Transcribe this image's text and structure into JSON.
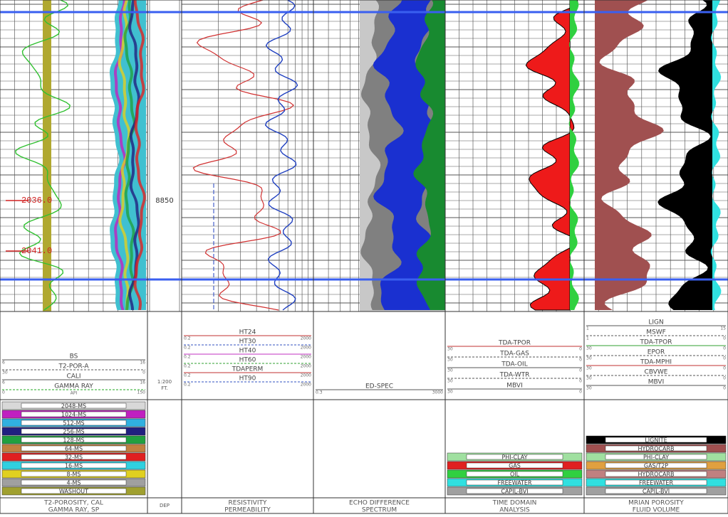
{
  "depth": {
    "scale": "1:200",
    "unit": "FT.",
    "label": "8850",
    "footer": "DEP",
    "marks": [
      "2036.0",
      "2041.0"
    ]
  },
  "tracks": [
    {
      "curves": [
        {
          "name": "BS",
          "left": "6",
          "right": "16",
          "color": "#555555"
        },
        {
          "name": "T2-POR-A",
          "left": "30",
          "right": "0",
          "color": "#555555"
        },
        {
          "name": "CALI",
          "left": "6",
          "right": "16",
          "color": "#555555"
        },
        {
          "name": "GAMMA RAY",
          "unit": "API",
          "left": "0",
          "right": "150",
          "color": "#22aa22"
        }
      ],
      "legend": [
        {
          "label": "2048-MS",
          "color": "#d8d8d8"
        },
        {
          "label": "1024-MS",
          "color": "#c020c0"
        },
        {
          "label": "512-MS",
          "color": "#30b0e0"
        },
        {
          "label": "256-MS",
          "color": "#202080"
        },
        {
          "label": "128-MS",
          "color": "#20a040"
        },
        {
          "label": "64-MS",
          "color": "#c08040"
        },
        {
          "label": "32-MS",
          "color": "#e02020"
        },
        {
          "label": "16-MS",
          "color": "#30d0e0"
        },
        {
          "label": "8-MS",
          "color": "#e0d020"
        },
        {
          "label": "4-MS",
          "color": "#a0a0a0"
        },
        {
          "label": "WASHOUT",
          "color": "#a0a030"
        }
      ],
      "footer": [
        "T2-POROSITY, CAL",
        "GAMMA RAY, SP"
      ]
    },
    {
      "curves": [
        {
          "name": "HT24",
          "left": "0.2",
          "right": "2000",
          "color": "#c03030"
        },
        {
          "name": "HT30",
          "left": "0.2",
          "right": "2000",
          "color": "#3050c0"
        },
        {
          "name": "HT40",
          "left": "0.2",
          "right": "2000",
          "color": "#c030c0"
        },
        {
          "name": "HT60",
          "left": "0.2",
          "right": "2000",
          "color": "#30a030"
        },
        {
          "name": "TDAPERM",
          "left": "0.2",
          "right": "2000",
          "color": "#c03030"
        },
        {
          "name": "HT90",
          "left": "0.2",
          "right": "2000",
          "color": "#3050c0"
        }
      ],
      "legend": [],
      "footer": [
        "RESISTIVITY",
        "PERMEABILITY"
      ]
    },
    {
      "curves": [
        {
          "name": "ED-SPEC",
          "left": "0.3",
          "right": "3000",
          "color": "#555555"
        }
      ],
      "legend": [],
      "footer": [
        "ECHO DIFFERENCE",
        "SPECTRUM"
      ]
    },
    {
      "curves": [
        {
          "name": "TDA-TPOR",
          "left": "30",
          "right": "0",
          "color": "#c03030"
        },
        {
          "name": "TDA-GAS",
          "left": "30",
          "right": "0",
          "color": "#555555"
        },
        {
          "name": "TDA-OIL",
          "left": "30",
          "right": "0",
          "color": "#555555"
        },
        {
          "name": "TDA-WTR",
          "left": "30",
          "right": "0",
          "color": "#555555"
        },
        {
          "name": "MBVI",
          "left": "30",
          "right": "0",
          "color": "#555555"
        }
      ],
      "legend": [
        {
          "label": "PHI-CLAY",
          "color": "#a0e0a0"
        },
        {
          "label": "GAS",
          "color": "#e02020"
        },
        {
          "label": "OIL",
          "color": "#30d040"
        },
        {
          "label": "FREEWATER",
          "color": "#30e0e0"
        },
        {
          "label": "CAPIL-BVI",
          "color": "#a0a0a0"
        }
      ],
      "footer": [
        "TIME DOMAIN",
        "ANALYSIS"
      ]
    },
    {
      "curves": [
        {
          "name": "LIGN",
          "left": "1",
          "right": "15",
          "color": "#555555"
        },
        {
          "name": "MSWF",
          "left": "1",
          "right": "0",
          "color": "#555555"
        },
        {
          "name": "TDA-TPOR",
          "left": "30",
          "right": "0",
          "color": "#30a030"
        },
        {
          "name": "EPOR",
          "left": "30",
          "right": "0",
          "color": "#555555"
        },
        {
          "name": "TDA-MPHI",
          "left": "30",
          "right": "0",
          "color": "#c03030"
        },
        {
          "name": "CBVWE",
          "left": "30",
          "right": "0",
          "color": "#555555"
        },
        {
          "name": "MBVI",
          "left": "30",
          "right": "0",
          "color": "#555555"
        }
      ],
      "legend": [
        {
          "label": "LIGNITE",
          "color": "#000000"
        },
        {
          "label": "HYDROCARB",
          "color": "#a05050"
        },
        {
          "label": "PHI-CLAY",
          "color": "#a0e0a0"
        },
        {
          "label": "GAS/T2P",
          "color": "#e0a040"
        },
        {
          "label": "HYDROCARB",
          "color": "#c08080"
        },
        {
          "label": "FREEWATER",
          "color": "#30e0e0"
        },
        {
          "label": "CAPIL-BVI",
          "color": "#a0a0a0"
        }
      ],
      "footer": [
        "MRIAN POROSITY",
        "FLUID VOLUME"
      ]
    }
  ]
}
